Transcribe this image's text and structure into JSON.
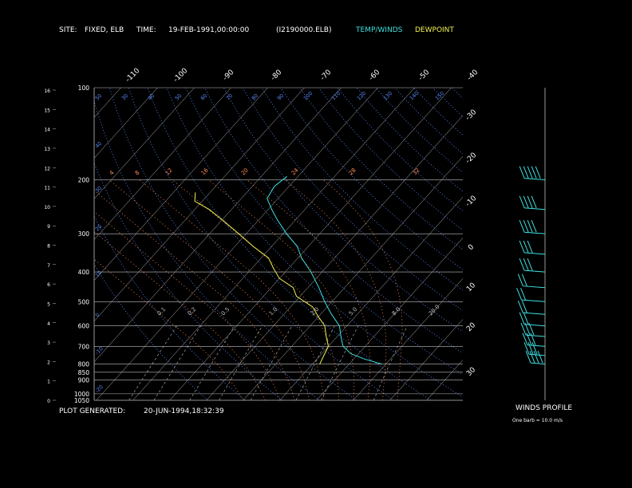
{
  "header": {
    "site_label": "SITE:",
    "site_value": "FIXED, ELB",
    "time_label": "TIME:",
    "time_value": "19-FEB-1991,00:00:00",
    "file_id": "(I2190000.ELB)",
    "legend_temp": "TEMP/WINDS",
    "legend_dew": "DEWPOINT"
  },
  "footer": {
    "generated_label": "PLOT GENERATED:",
    "generated_value": "20-JUN-1994,18:32:39",
    "winds_title": "WINDS PROFILE",
    "barb_note": "One barb = 10.0 m/s"
  },
  "colors": {
    "background": "#000000",
    "grid": "#bfbfbf",
    "temperature": "#3ee0e0",
    "dewpoint": "#f0f050",
    "dry_adiabat": "#5a8cff",
    "moist_adiabat": "#ff8c5a",
    "mixing_ratio": "#bfbfbf"
  },
  "chart_data": {
    "type": "line",
    "pressure_levels": [
      1050,
      1000,
      900,
      850,
      800,
      700,
      600,
      500,
      400,
      300,
      200,
      100
    ],
    "height_km_ticks": [
      "0",
      "1",
      "2",
      "3",
      "4",
      "5",
      "6",
      "7",
      "8",
      "9",
      "10",
      "11",
      "12",
      "13",
      "14",
      "15",
      "16"
    ],
    "isotherm_top_labels": [
      "-110",
      "-100",
      "-90",
      "-80",
      "-70",
      "-60",
      "-50",
      "-40"
    ],
    "isotherm_right_labels": [
      "-30",
      "-20",
      "-10",
      "0",
      "10",
      "20",
      "30"
    ],
    "theta_labels": [
      "30",
      "40",
      "50",
      "60",
      "70",
      "80",
      "90",
      "100",
      "110",
      "120",
      "130",
      "140",
      "150"
    ],
    "dry_adiabat_left_labels": [
      "50",
      "40",
      "30",
      "20",
      "10",
      "0",
      "-10",
      "-20",
      "-30",
      "-40"
    ],
    "moist_adiabat_labels": [
      "4",
      "8",
      "12",
      "16",
      "20",
      "24",
      "28",
      "32"
    ],
    "mixing_ratio_labels": [
      "0.1",
      "0.2",
      "0.5",
      "1.0",
      "2.0",
      "5.0",
      "8.0",
      "20.0"
    ],
    "series": [
      {
        "name": "TEMP/WINDS",
        "points": [
          {
            "p": 800,
            "t": 19
          },
          {
            "p": 770,
            "t": 13
          },
          {
            "p": 740,
            "t": 8
          },
          {
            "p": 700,
            "t": 4
          },
          {
            "p": 650,
            "t": 1
          },
          {
            "p": 600,
            "t": -2
          },
          {
            "p": 550,
            "t": -7
          },
          {
            "p": 500,
            "t": -12
          },
          {
            "p": 450,
            "t": -17
          },
          {
            "p": 400,
            "t": -23
          },
          {
            "p": 360,
            "t": -29
          },
          {
            "p": 330,
            "t": -33
          },
          {
            "p": 300,
            "t": -39
          },
          {
            "p": 270,
            "t": -45
          },
          {
            "p": 250,
            "t": -49
          },
          {
            "p": 230,
            "t": -53
          },
          {
            "p": 210,
            "t": -54
          },
          {
            "p": 195,
            "t": -53
          }
        ]
      },
      {
        "name": "DEWPOINT",
        "points": [
          {
            "p": 800,
            "t": 2
          },
          {
            "p": 750,
            "t": 1
          },
          {
            "p": 700,
            "t": 0
          },
          {
            "p": 650,
            "t": -3
          },
          {
            "p": 600,
            "t": -6
          },
          {
            "p": 560,
            "t": -10
          },
          {
            "p": 520,
            "t": -14
          },
          {
            "p": 480,
            "t": -21
          },
          {
            "p": 450,
            "t": -24
          },
          {
            "p": 420,
            "t": -30
          },
          {
            "p": 390,
            "t": -34
          },
          {
            "p": 360,
            "t": -38
          },
          {
            "p": 330,
            "t": -45
          },
          {
            "p": 300,
            "t": -52
          },
          {
            "p": 270,
            "t": -60
          },
          {
            "p": 250,
            "t": -66
          },
          {
            "p": 235,
            "t": -72
          },
          {
            "p": 220,
            "t": -74
          }
        ]
      }
    ],
    "winds": [
      {
        "p": 800,
        "speed": 35,
        "dir": 290
      },
      {
        "p": 750,
        "speed": 30,
        "dir": 285
      },
      {
        "p": 700,
        "speed": 30,
        "dir": 280
      },
      {
        "p": 650,
        "speed": 25,
        "dir": 275
      },
      {
        "p": 600,
        "speed": 20,
        "dir": 270
      },
      {
        "p": 550,
        "speed": 20,
        "dir": 265
      },
      {
        "p": 500,
        "speed": 20,
        "dir": 260
      },
      {
        "p": 450,
        "speed": 20,
        "dir": 265
      },
      {
        "p": 400,
        "speed": 25,
        "dir": 270
      },
      {
        "p": 350,
        "speed": 30,
        "dir": 270
      },
      {
        "p": 300,
        "speed": 35,
        "dir": 270
      },
      {
        "p": 250,
        "speed": 40,
        "dir": 270
      },
      {
        "p": 200,
        "speed": 45,
        "dir": 270
      }
    ]
  }
}
